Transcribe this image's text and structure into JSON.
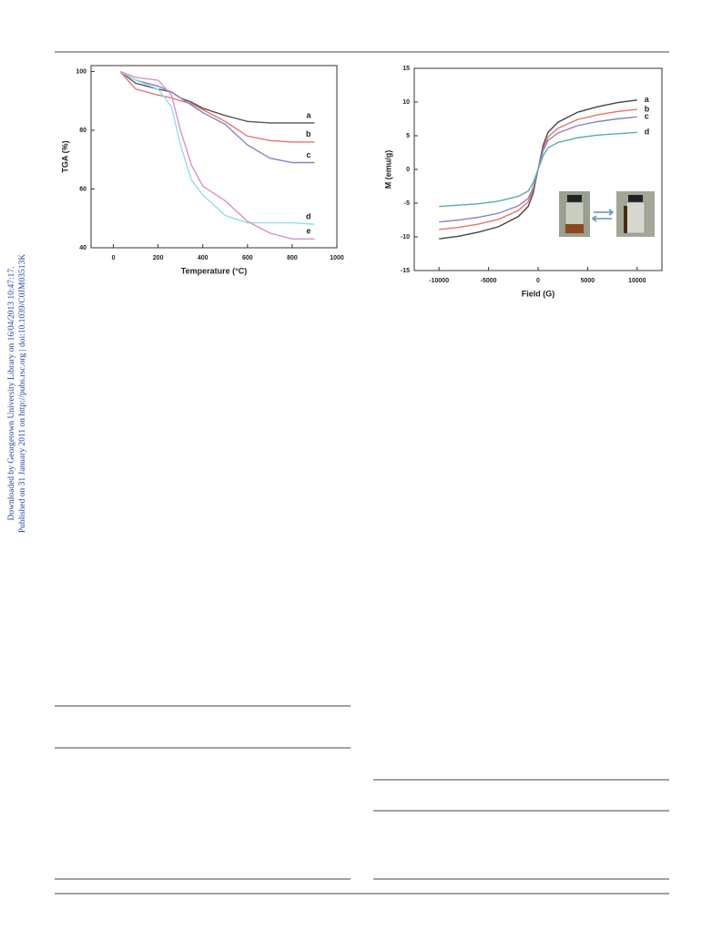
{
  "margin_notes": [
    "Downloaded by Georgetown University Library on 16/04/2013 10:47:17.",
    "Published on 31 January 2011 on http://pubs.rsc.org | doi:10.1039/C0JM03513K"
  ],
  "chart_data": [
    {
      "type": "line",
      "xlabel": "Temperature (°C)",
      "ylabel": "TGA (%)",
      "x": [
        30,
        100,
        200,
        260,
        300,
        350,
        400,
        500,
        600,
        700,
        800,
        900
      ],
      "xlim": [
        -100,
        1000
      ],
      "xticks": [
        0,
        200,
        400,
        600,
        800,
        1000
      ],
      "ylim": [
        40,
        102
      ],
      "yticks": [
        40,
        60,
        80,
        100
      ],
      "series": [
        {
          "name": "a",
          "color": "#555555",
          "values": [
            100,
            96,
            94,
            93,
            91,
            89.5,
            87.5,
            85,
            83,
            82.5,
            82.5,
            82.5
          ]
        },
        {
          "name": "b",
          "color": "#e8716e",
          "values": [
            100,
            94,
            92,
            91,
            90,
            89,
            87,
            83,
            78,
            76.5,
            76,
            76
          ]
        },
        {
          "name": "c",
          "color": "#8585c0",
          "values": [
            100,
            97,
            95,
            93,
            91,
            88.5,
            86,
            82,
            75,
            70.5,
            69,
            69
          ]
        },
        {
          "name": "d",
          "color": "#8fdfe9",
          "values": [
            100,
            97,
            94,
            88,
            75,
            63,
            58,
            51,
            48.5,
            48.5,
            48.5,
            48
          ]
        },
        {
          "name": "e",
          "color": "#d890c8",
          "values": [
            100,
            98,
            97,
            92,
            80,
            68,
            61,
            56,
            49,
            45,
            43,
            43
          ]
        }
      ]
    },
    {
      "type": "line",
      "xlabel": "Field (G)",
      "ylabel": "M (emu/g)",
      "x": [
        -10000,
        -8000,
        -6000,
        -4000,
        -2000,
        -1000,
        -500,
        0,
        500,
        1000,
        2000,
        4000,
        6000,
        8000,
        10000
      ],
      "xlim": [
        -12500,
        12500
      ],
      "xticks": [
        -10000,
        -5000,
        0,
        5000,
        10000
      ],
      "ylim": [
        -15,
        15
      ],
      "yticks": [
        -15,
        -10,
        -5,
        0,
        5,
        10,
        15
      ],
      "series": [
        {
          "name": "a",
          "color": "#444444",
          "values": [
            -10.3,
            -9.9,
            -9.3,
            -8.5,
            -7.0,
            -5.5,
            -3.5,
            0,
            3.5,
            5.5,
            7.0,
            8.5,
            9.3,
            9.9,
            10.3
          ]
        },
        {
          "name": "b",
          "color": "#e8716e",
          "values": [
            -8.9,
            -8.6,
            -8.1,
            -7.4,
            -6.1,
            -4.8,
            -3.0,
            0,
            3.0,
            4.8,
            6.1,
            7.4,
            8.1,
            8.6,
            8.9
          ]
        },
        {
          "name": "c",
          "color": "#8585c0",
          "values": [
            -7.8,
            -7.5,
            -7.1,
            -6.5,
            -5.4,
            -4.3,
            -2.7,
            0,
            2.7,
            4.3,
            5.4,
            6.5,
            7.1,
            7.5,
            7.8
          ]
        },
        {
          "name": "d",
          "color": "#5aaba8",
          "values": [
            -5.5,
            -5.3,
            -5.1,
            -4.7,
            -4.0,
            -3.2,
            -2.0,
            0,
            2.0,
            3.2,
            4.0,
            4.7,
            5.1,
            5.3,
            5.5
          ]
        }
      ]
    }
  ]
}
